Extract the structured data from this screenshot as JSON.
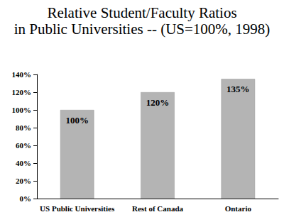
{
  "chart_data": {
    "type": "bar",
    "title": "Relative Student/Faculty Ratios",
    "subtitle": "in Public Universities -- (US=100%, 1998)",
    "categories": [
      "US Public Universities",
      "Rest of Canada",
      "Ontario"
    ],
    "values": [
      100,
      120,
      135
    ],
    "value_labels": [
      "100%",
      "120%",
      "135%"
    ],
    "data_labels": true,
    "color": "#b4b4b4",
    "ylim": [
      0,
      140
    ],
    "yticks": [
      {
        "value": 0,
        "label": "0%"
      },
      {
        "value": 20,
        "label": "20%"
      },
      {
        "value": 40,
        "label": "40%"
      },
      {
        "value": 60,
        "label": "60%"
      },
      {
        "value": 80,
        "label": "80%"
      },
      {
        "value": 100,
        "label": "100%"
      },
      {
        "value": 120,
        "label": "120%"
      },
      {
        "value": 140,
        "label": "140%"
      }
    ],
    "grid": false
  }
}
